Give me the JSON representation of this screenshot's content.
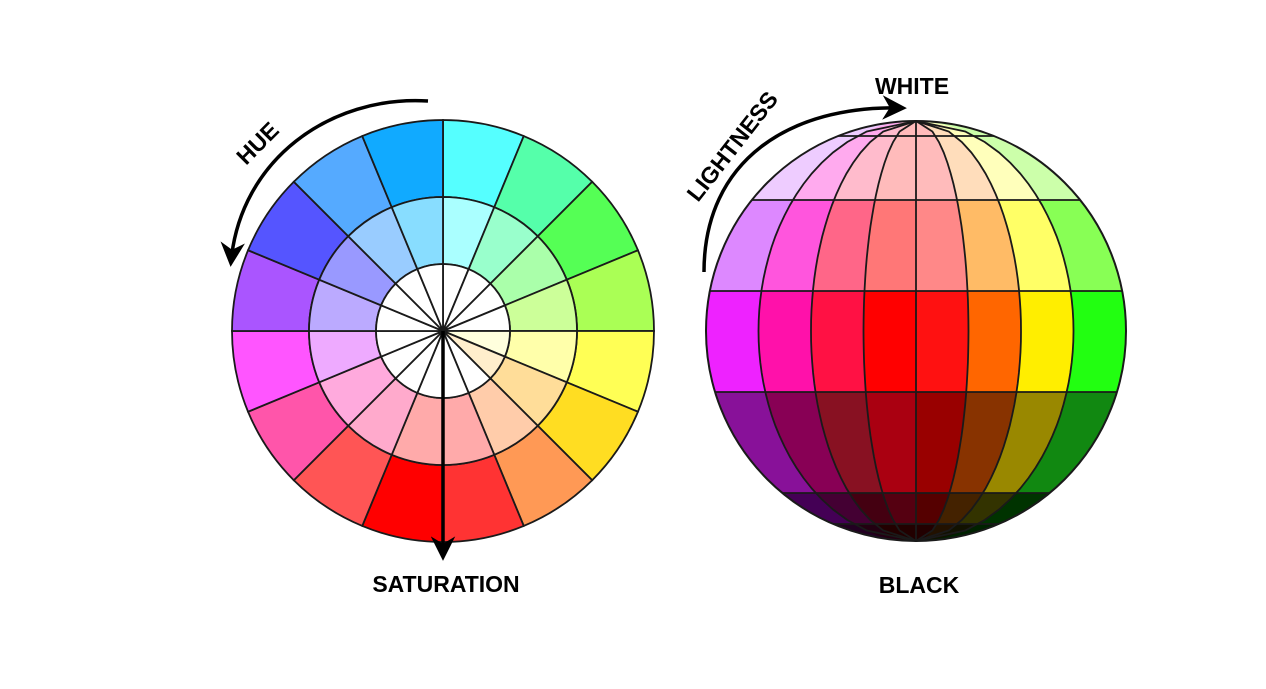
{
  "labels": {
    "hue": "HUE",
    "saturation": "SATURATION",
    "lightness": "LIGHTNESS",
    "white": "WHITE",
    "black": "BLACK"
  },
  "hue_wheel": {
    "segments": 16,
    "rings": [
      "inner",
      "middle",
      "outer"
    ],
    "colors": {
      "outer": [
        "#55ffff",
        "#55ffaa",
        "#55ff55",
        "#aaff55",
        "#ffff55",
        "#ffdd22",
        "#ff9955",
        "#ff3333",
        "#ff0000",
        "#ff5555",
        "#ff55aa",
        "#ff55ff",
        "#aa55ff",
        "#5555ff",
        "#55aaff",
        "#11aaff"
      ],
      "middle": [
        "#aaffff",
        "#99ffcc",
        "#aaffaa",
        "#ccff99",
        "#ffffaa",
        "#ffdd99",
        "#ffccaa",
        "#ffaaaa",
        "#ffaaaa",
        "#ffaacc",
        "#ffaadd",
        "#eeaaff",
        "#bbaaff",
        "#9999ff",
        "#99ccff",
        "#88ddff"
      ],
      "inner": [
        "#ffffff",
        "#ffffff",
        "#ffffff",
        "#ffffff",
        "#ffffdd",
        "#ffeecc",
        "#ffffff",
        "#ffffff",
        "#ffffff",
        "#ffffff",
        "#ffffff",
        "#ffffff",
        "#ffffff",
        "#ffffff",
        "#ffffff",
        "#ffffff"
      ]
    }
  },
  "lightness_sphere": {
    "bands": [
      [
        "#eeccff",
        "#ffaaee",
        "#ffbbcc",
        "#ffbbbb",
        "#ffbbbb",
        "#ffddbb",
        "#ffffbb",
        "#ccffaa"
      ],
      [
        "#dd88ff",
        "#ff55dd",
        "#ff6688",
        "#ff7777",
        "#ff8888",
        "#ffbb66",
        "#ffff66",
        "#88ff55"
      ],
      [
        "#ee22ff",
        "#ff11aa",
        "#ff1144",
        "#ff0000",
        "#ff1111",
        "#ff6600",
        "#ffee00",
        "#22ff11"
      ],
      [
        "#881199",
        "#880055",
        "#881122",
        "#aa0011",
        "#990000",
        "#883300",
        "#998800",
        "#118811"
      ],
      [
        "#440055",
        "#440033",
        "#440011",
        "#550011",
        "#550000",
        "#442200",
        "#333300",
        "#003300"
      ],
      [
        "#220022",
        "#220011",
        "#220000",
        "#220000",
        "#220000",
        "#221100",
        "#111100",
        "#002200"
      ]
    ]
  }
}
